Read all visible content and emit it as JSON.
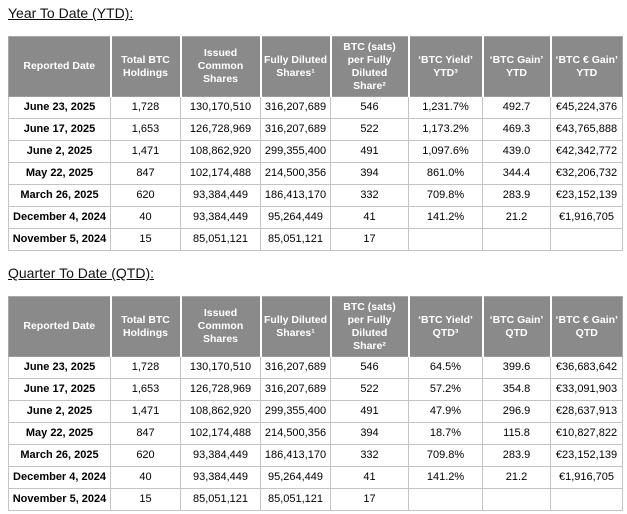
{
  "colors": {
    "header_bg": "#8a8a8a",
    "header_text": "#ffffff",
    "grid_border": "#c4c4c4"
  },
  "sections": [
    {
      "id": "ytd",
      "title": "Year To Date (YTD):",
      "columns": [
        "Reported Date",
        "Total BTC\nHoldings",
        "Issued\nCommon\nShares",
        "Fully Diluted\nShares¹",
        "BTC (sats)\nper Fully\nDiluted\nShare²",
        "‘BTC Yield’\nYTD³",
        "‘BTC Gain’\nYTD",
        "‘BTC € Gain’\nYTD"
      ],
      "rows": [
        [
          "June 23, 2025",
          "1,728",
          "130,170,510",
          "316,207,689",
          "546",
          "1,231.7%",
          "492.7",
          "€45,224,376"
        ],
        [
          "June 17, 2025",
          "1,653",
          "126,728,969",
          "316,207,689",
          "522",
          "1,173.2%",
          "469.3",
          "€43,765,888"
        ],
        [
          "June 2, 2025",
          "1,471",
          "108,862,920",
          "299,355,400",
          "491",
          "1,097.6%",
          "439.0",
          "€42,342,772"
        ],
        [
          "May 22, 2025",
          "847",
          "102,174,488",
          "214,500,356",
          "394",
          "861.0%",
          "344.4",
          "€32,206,732"
        ],
        [
          "March 26, 2025",
          "620",
          "93,384,449",
          "186,413,170",
          "332",
          "709.8%",
          "283.9",
          "€23,152,139"
        ],
        [
          "December 4, 2024",
          "40",
          "93,384,449",
          "95,264,449",
          "41",
          "141.2%",
          "21.2",
          "€1,916,705"
        ],
        [
          "November 5, 2024",
          "15",
          "85,051,121",
          "85,051,121",
          "17",
          "",
          "",
          ""
        ]
      ]
    },
    {
      "id": "qtd",
      "title": "Quarter To Date (QTD):",
      "columns": [
        "Reported Date",
        "Total BTC\nHoldings",
        "Issued\nCommon\nShares",
        "Fully Diluted\nShares¹",
        "BTC (sats)\nper Fully\nDiluted\nShare²",
        "‘BTC Yield’\nQTD³",
        "‘BTC Gain’\nQTD",
        "‘BTC € Gain’\nQTD"
      ],
      "rows": [
        [
          "June 23, 2025",
          "1,728",
          "130,170,510",
          "316,207,689",
          "546",
          "64.5%",
          "399.6",
          "€36,683,642"
        ],
        [
          "June 17, 2025",
          "1,653",
          "126,728,969",
          "316,207,689",
          "522",
          "57.2%",
          "354.8",
          "€33,091,903"
        ],
        [
          "June 2, 2025",
          "1,471",
          "108,862,920",
          "299,355,400",
          "491",
          "47.9%",
          "296.9",
          "€28,637,913"
        ],
        [
          "May 22, 2025",
          "847",
          "102,174,488",
          "214,500,356",
          "394",
          "18.7%",
          "115.8",
          "€10,827,822"
        ],
        [
          "March 26, 2025",
          "620",
          "93,384,449",
          "186,413,170",
          "332",
          "709.8%",
          "283.9",
          "€23,152,139"
        ],
        [
          "December 4, 2024",
          "40",
          "93,384,449",
          "95,264,449",
          "41",
          "141.2%",
          "21.2",
          "€1,916,705"
        ],
        [
          "November 5, 2024",
          "15",
          "85,051,121",
          "85,051,121",
          "17",
          "",
          "",
          ""
        ]
      ]
    }
  ]
}
